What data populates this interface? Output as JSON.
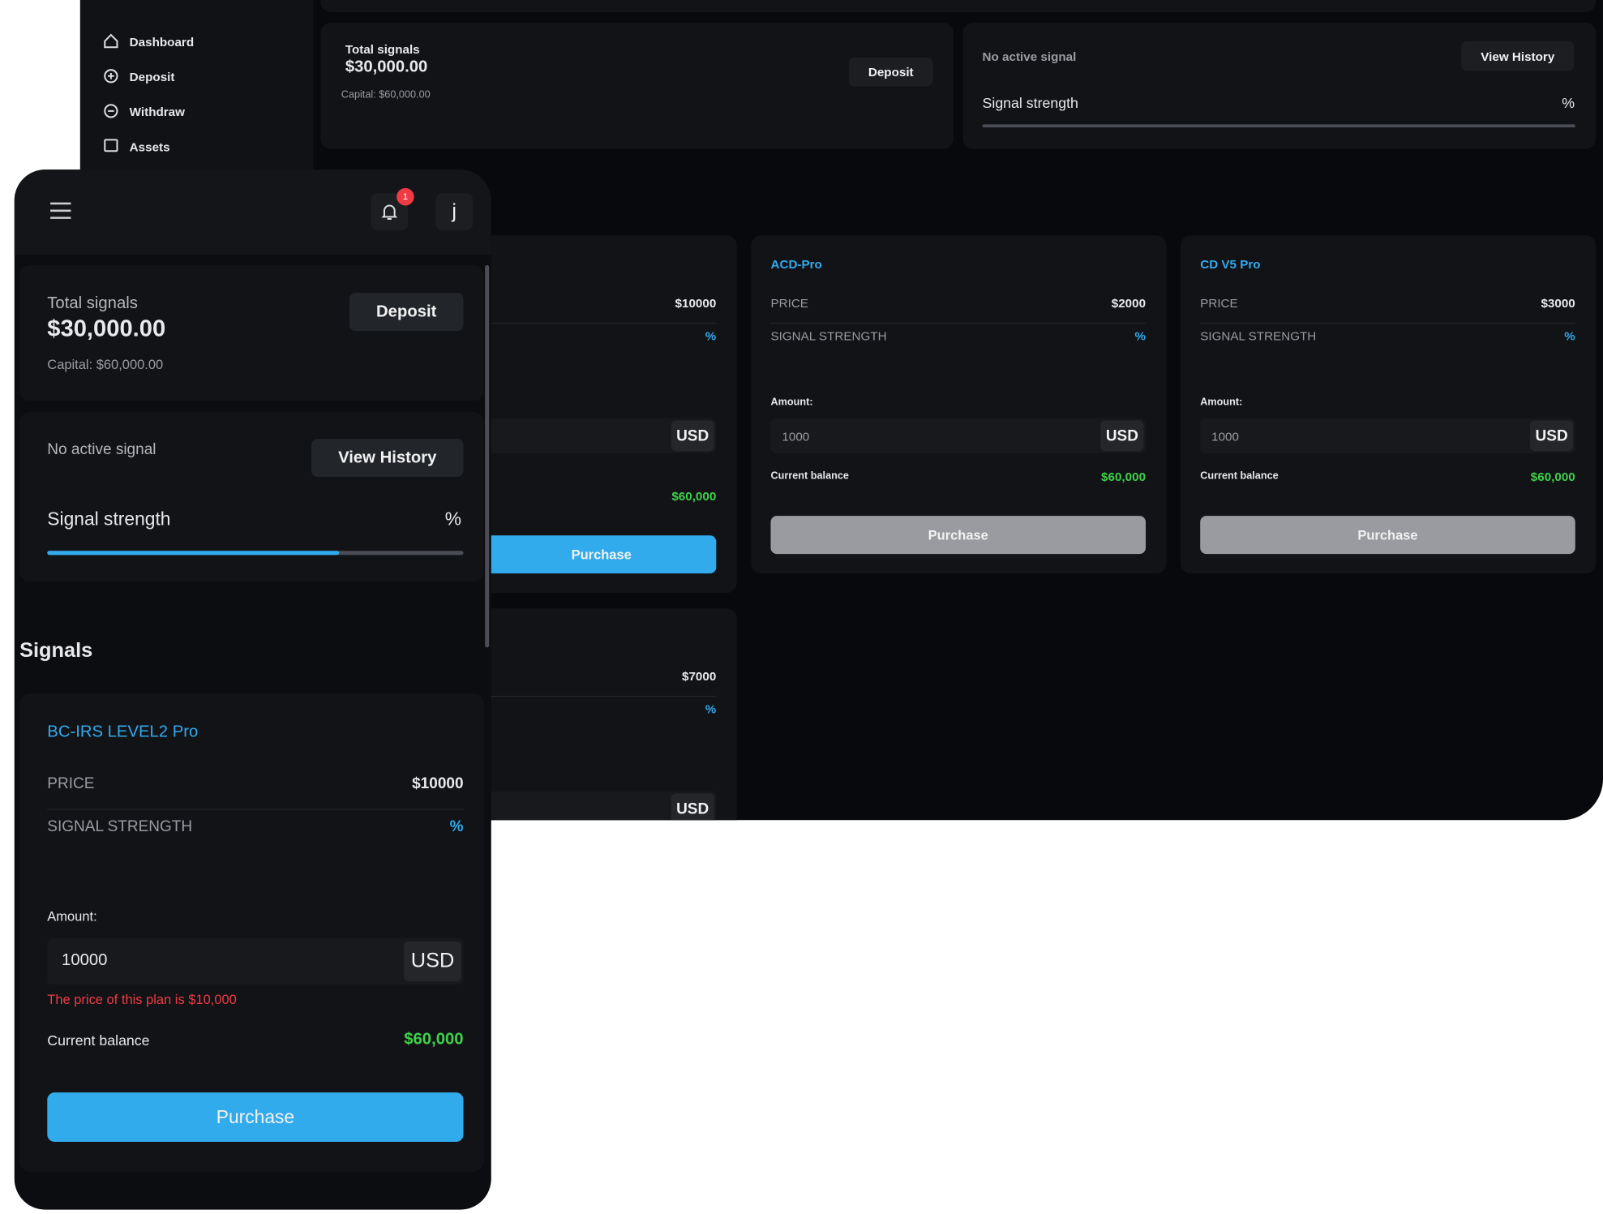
{
  "desktop": {
    "sidebar": [
      "Dashboard",
      "Deposit",
      "Withdraw",
      "Assets"
    ],
    "balance": {
      "label": "Total signals",
      "amount": "$30,000.00",
      "capital": "Capital: $60,000.00",
      "deposit": "Deposit"
    },
    "signal": {
      "status": "No active signal",
      "history": "View History",
      "strength_label": "Signal strength",
      "strength_value": "%"
    },
    "plans": [
      {
        "price": "$10000",
        "strength": "%",
        "currency": "USD",
        "balance": "$60,000",
        "button": "Purchase"
      },
      {
        "name": "ACD-Pro",
        "price_label": "PRICE",
        "price": "$2000",
        "strength_label": "SIGNAL STRENGTH",
        "strength": "%",
        "amount_label": "Amount:",
        "placeholder": "1000",
        "currency": "USD",
        "balance_label": "Current balance",
        "balance": "$60,000",
        "button": "Purchase"
      },
      {
        "name": "CD V5 Pro",
        "price_label": "PRICE",
        "price": "$3000",
        "strength_label": "SIGNAL STRENGTH",
        "strength": "%",
        "amount_label": "Amount:",
        "placeholder": "1000",
        "currency": "USD",
        "balance_label": "Current balance",
        "balance": "$60,000",
        "button": "Purchase"
      },
      {
        "price": "$7000",
        "strength": "%",
        "currency": "USD"
      }
    ]
  },
  "mobile": {
    "notifications": "1",
    "avatar": "j",
    "balance": {
      "label": "Total signals",
      "amount": "$30,000.00",
      "capital": "Capital: $60,000.00",
      "deposit": "Deposit"
    },
    "signal": {
      "status": "No active signal",
      "history": "View History",
      "strength_label": "Signal strength",
      "strength_value": "%"
    },
    "section_title": "Signals",
    "plan": {
      "name": "BC-IRS LEVEL2 Pro",
      "price_label": "PRICE",
      "price": "$10000",
      "strength_label": "SIGNAL STRENGTH",
      "strength": "%",
      "amount_label": "Amount:",
      "amount": "10000",
      "currency": "USD",
      "error": "The price of this plan is $10,000",
      "balance_label": "Current balance",
      "balance": "$60,000",
      "button": "Purchase"
    }
  }
}
